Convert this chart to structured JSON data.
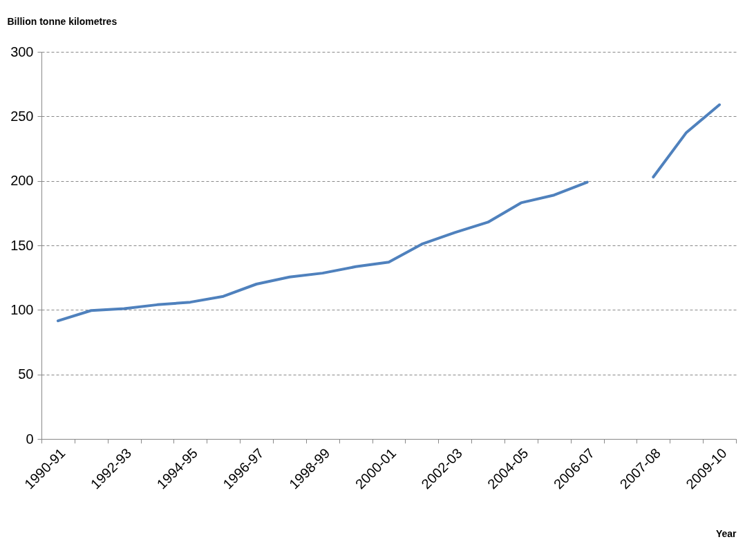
{
  "chart_data": {
    "type": "line",
    "xlabel": "Year",
    "ylabel": "Billion tonne kilometres",
    "categories": [
      "1990-91",
      null,
      "1992-93",
      null,
      "1994-95",
      null,
      "1996-97",
      null,
      "1998-99",
      null,
      "2000-01",
      null,
      "2002-03",
      null,
      "2004-05",
      null,
      "2006-07",
      null,
      "2007-08",
      null,
      "2009-10"
    ],
    "series": [
      {
        "color": "#4f81bd",
        "values": [
          91.5,
          99.5,
          101,
          104,
          106,
          110.5,
          120,
          125.5,
          128.5,
          133.5,
          137,
          151,
          160,
          168,
          183,
          189,
          199,
          null,
          203,
          237.5,
          259
        ]
      }
    ],
    "ylim": [
      0,
      300
    ],
    "yticks": [
      0,
      50,
      100,
      150,
      200,
      250,
      300
    ],
    "grid": "y",
    "legend": false,
    "marker": "none",
    "line_style": "solid"
  }
}
